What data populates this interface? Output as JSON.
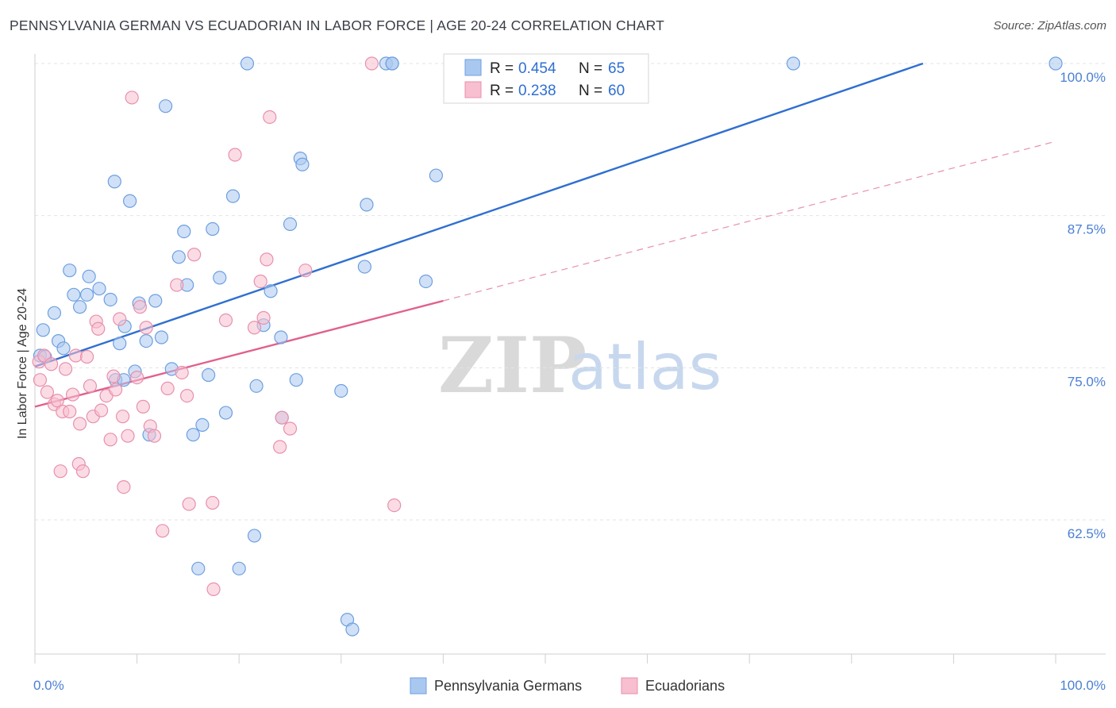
{
  "header": {
    "title": "PENNSYLVANIA GERMAN VS ECUADORIAN IN LABOR FORCE | AGE 20-24 CORRELATION CHART",
    "source": "Source: ZipAtlas.com"
  },
  "watermark": {
    "zip": "ZIP",
    "atlas": "atlas"
  },
  "legend": {
    "r_label": "R =",
    "n_label": "N =",
    "rows": [
      {
        "r": "0.454",
        "n": "65"
      },
      {
        "r": "0.238",
        "n": "60"
      }
    ]
  },
  "bottom_legend": {
    "items": [
      "Pennsylvania Germans",
      "Ecuadorians"
    ]
  },
  "chart_data": {
    "type": "scatter",
    "title": "PENNSYLVANIA GERMAN VS ECUADORIAN IN LABOR FORCE | AGE 20-24 CORRELATION CHART",
    "ylabel": "In Labor Force | Age 20-24",
    "xlabel": "",
    "xlim": [
      0,
      100
    ],
    "ylim": [
      51.5,
      100.5
    ],
    "x_tick_labels": [
      "0.0%",
      "100.0%"
    ],
    "y_tick_labels": [
      "100.0%",
      "87.5%",
      "75.0%",
      "62.5%"
    ],
    "y_ticks": [
      100,
      87.5,
      75,
      62.5
    ],
    "grid": true,
    "legend_position": "top-center",
    "colors": {
      "series1": "#2f6fd0",
      "series2": "#e0608e",
      "fill1": "#a9c8f0",
      "fill2": "#f7bfd0"
    },
    "series": [
      {
        "name": "Pennsylvania Germans",
        "r": 0.454,
        "n": 65,
        "trend": {
          "x": [
            0,
            87
          ],
          "y": [
            75.1,
            100
          ]
        },
        "points": [
          [
            0.5,
            76
          ],
          [
            0.8,
            78.1
          ],
          [
            1.0,
            75.9
          ],
          [
            1.9,
            79.5
          ],
          [
            2.3,
            77.2
          ],
          [
            2.8,
            76.6
          ],
          [
            3.4,
            83
          ],
          [
            3.8,
            81
          ],
          [
            4.4,
            80
          ],
          [
            5.1,
            81
          ],
          [
            5.3,
            82.5
          ],
          [
            6.3,
            81.5
          ],
          [
            7.4,
            80.6
          ],
          [
            7.9,
            74
          ],
          [
            8.7,
            74
          ],
          [
            7.8,
            90.3
          ],
          [
            8.3,
            77
          ],
          [
            8.8,
            78.4
          ],
          [
            9.3,
            88.7
          ],
          [
            9.8,
            74.7
          ],
          [
            10.2,
            80.3
          ],
          [
            10.9,
            77.2
          ],
          [
            11.2,
            69.5
          ],
          [
            11.8,
            80.5
          ],
          [
            12.4,
            77.5
          ],
          [
            12.8,
            96.5
          ],
          [
            13.4,
            74.9
          ],
          [
            14.1,
            84.1
          ],
          [
            14.6,
            86.2
          ],
          [
            14.9,
            81.8
          ],
          [
            16.0,
            58.5
          ],
          [
            15.5,
            69.5
          ],
          [
            16.4,
            70.3
          ],
          [
            17.0,
            74.4
          ],
          [
            17.4,
            86.4
          ],
          [
            18.1,
            82.4
          ],
          [
            18.7,
            71.3
          ],
          [
            19.4,
            89.1
          ],
          [
            20.0,
            58.5
          ],
          [
            20.8,
            100
          ],
          [
            21.5,
            61.2
          ],
          [
            21.7,
            73.5
          ],
          [
            22.4,
            78.5
          ],
          [
            23.1,
            81.3
          ],
          [
            24.1,
            77.5
          ],
          [
            24.2,
            70.9
          ],
          [
            25.0,
            86.8
          ],
          [
            25.6,
            74
          ],
          [
            26.0,
            92.2
          ],
          [
            26.2,
            91.7
          ],
          [
            30.0,
            73.1
          ],
          [
            30.6,
            54.3
          ],
          [
            31.1,
            53.5
          ],
          [
            32.3,
            83.3
          ],
          [
            32.5,
            88.4
          ],
          [
            34.4,
            100
          ],
          [
            35.0,
            100
          ],
          [
            35.0,
            100
          ],
          [
            38.3,
            82.1
          ],
          [
            39.3,
            90.8
          ],
          [
            46.6,
            100
          ],
          [
            55.7,
            100
          ],
          [
            58.8,
            100
          ],
          [
            74.3,
            100
          ],
          [
            100,
            100
          ]
        ]
      },
      {
        "name": "Ecuadorians",
        "r": 0.238,
        "n": 60,
        "trend": {
          "x": [
            0,
            40
          ],
          "y": [
            71.8,
            80.5
          ]
        },
        "trend_extension": {
          "x": [
            40,
            100
          ],
          "y": [
            80.5,
            93.6
          ]
        },
        "points": [
          [
            0.4,
            75.5
          ],
          [
            0.5,
            74
          ],
          [
            0.9,
            76
          ],
          [
            1.2,
            73
          ],
          [
            1.6,
            75.3
          ],
          [
            1.9,
            72
          ],
          [
            2.2,
            72.3
          ],
          [
            2.5,
            66.5
          ],
          [
            2.7,
            71.4
          ],
          [
            3.0,
            74.9
          ],
          [
            3.4,
            71.4
          ],
          [
            3.7,
            72.8
          ],
          [
            4.0,
            76
          ],
          [
            4.3,
            67.1
          ],
          [
            4.4,
            70.4
          ],
          [
            4.7,
            66.5
          ],
          [
            5.1,
            75.9
          ],
          [
            5.4,
            73.5
          ],
          [
            5.7,
            71
          ],
          [
            6.0,
            78.8
          ],
          [
            6.2,
            78.2
          ],
          [
            6.5,
            71.5
          ],
          [
            7.0,
            72.7
          ],
          [
            7.4,
            69.1
          ],
          [
            7.7,
            74.3
          ],
          [
            7.9,
            73.2
          ],
          [
            8.3,
            79
          ],
          [
            8.6,
            71
          ],
          [
            8.7,
            65.2
          ],
          [
            9.1,
            69.4
          ],
          [
            9.5,
            97.2
          ],
          [
            10.0,
            74.2
          ],
          [
            10.3,
            80
          ],
          [
            10.6,
            71.8
          ],
          [
            10.9,
            78.3
          ],
          [
            11.3,
            70.2
          ],
          [
            11.7,
            69.4
          ],
          [
            12.5,
            61.6
          ],
          [
            13.0,
            73.3
          ],
          [
            13.9,
            81.8
          ],
          [
            14.4,
            74.6
          ],
          [
            14.9,
            72.7
          ],
          [
            15.1,
            63.8
          ],
          [
            15.6,
            84.3
          ],
          [
            17.4,
            63.9
          ],
          [
            17.5,
            56.8
          ],
          [
            18.7,
            78.9
          ],
          [
            19.6,
            92.5
          ],
          [
            21.5,
            78.3
          ],
          [
            22.4,
            79.1
          ],
          [
            22.1,
            82.1
          ],
          [
            22.7,
            83.9
          ],
          [
            23.0,
            95.6
          ],
          [
            24.0,
            68.5
          ],
          [
            24.2,
            70.9
          ],
          [
            25.0,
            70
          ],
          [
            26.5,
            83
          ],
          [
            33.0,
            100
          ],
          [
            35.2,
            63.7
          ],
          [
            44.4,
            100
          ]
        ]
      }
    ]
  }
}
